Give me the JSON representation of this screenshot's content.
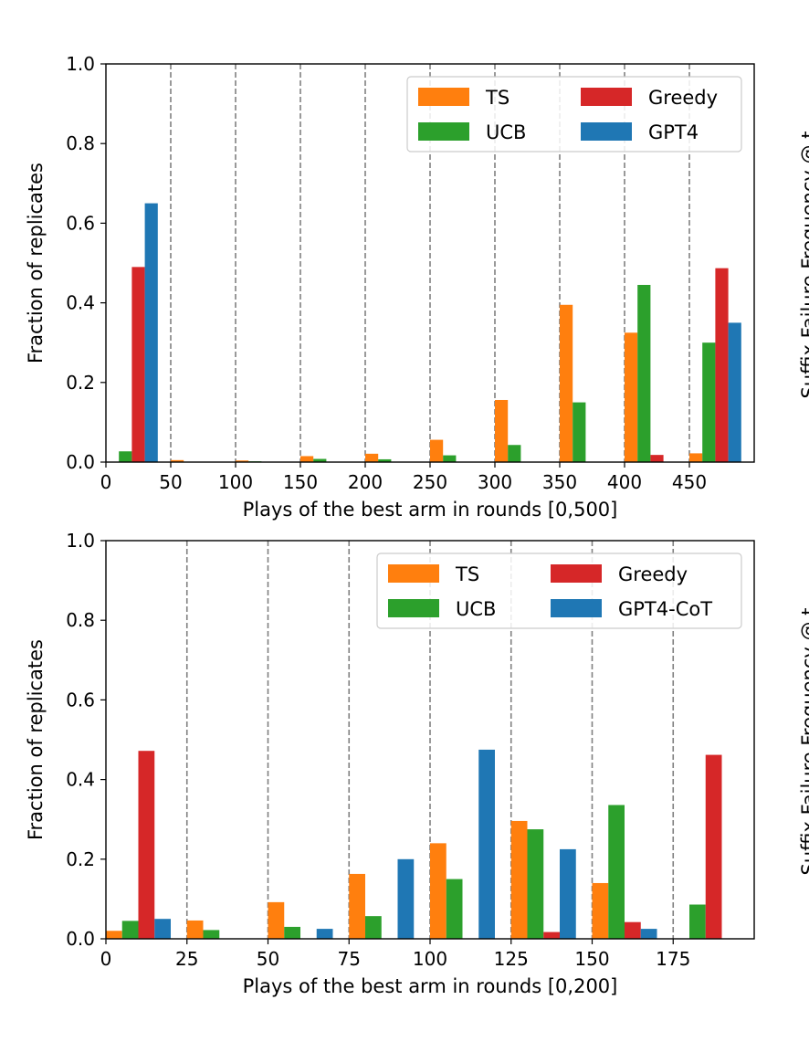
{
  "colors": {
    "TS": "#ff7f0e",
    "UCB": "#2ca02c",
    "Greedy": "#d62728",
    "GPT": "#1f77b4",
    "gridline": "#808080"
  },
  "right_edge_text": "Suffix Failure Frequency @ t",
  "chart_data": [
    {
      "type": "bar",
      "xlabel": "Plays of the best arm in rounds [0,500]",
      "ylabel": "Fraction of replicates",
      "xlim": [
        0,
        500
      ],
      "ylim": [
        0,
        1.0
      ],
      "xticks": [
        "0",
        "50",
        "100",
        "150",
        "200",
        "250",
        "300",
        "350",
        "400",
        "450"
      ],
      "yticks": [
        "0.0",
        "0.2",
        "0.4",
        "0.6",
        "0.8",
        "1.0"
      ],
      "bin_width": 50,
      "dashed_vlines_at": [
        50,
        100,
        150,
        200,
        250,
        300,
        350,
        400,
        450
      ],
      "bins": [
        0,
        50,
        100,
        150,
        200,
        250,
        300,
        350,
        400,
        450
      ],
      "legend": {
        "position": "top-right",
        "entries": [
          "TS",
          "UCB",
          "Greedy",
          "GPT4"
        ]
      },
      "series": [
        {
          "name": "TS",
          "values": [
            0.0,
            0.005,
            0.004,
            0.015,
            0.021,
            0.056,
            0.156,
            0.395,
            0.325,
            0.022
          ]
        },
        {
          "name": "UCB",
          "values": [
            0.027,
            0.0,
            0.002,
            0.008,
            0.007,
            0.017,
            0.043,
            0.15,
            0.445,
            0.3
          ]
        },
        {
          "name": "Greedy",
          "values": [
            0.49,
            0.0,
            0.0,
            0.0,
            0.0,
            0.0,
            0.0,
            0.0,
            0.018,
            0.487
          ]
        },
        {
          "name": "GPT4",
          "values": [
            0.65,
            0.0,
            0.0,
            0.0,
            0.0,
            0.0,
            0.0,
            0.0,
            0.0,
            0.35
          ]
        }
      ]
    },
    {
      "type": "bar",
      "xlabel": "Plays of the best arm in rounds [0,200]",
      "ylabel": "Fraction of replicates",
      "xlim": [
        0,
        200
      ],
      "ylim": [
        0,
        1.0
      ],
      "xticks": [
        "0",
        "25",
        "50",
        "75",
        "100",
        "125",
        "150",
        "175"
      ],
      "yticks": [
        "0.0",
        "0.2",
        "0.4",
        "0.6",
        "0.8",
        "1.0"
      ],
      "bin_width": 25,
      "dashed_vlines_at": [
        25,
        50,
        75,
        100,
        125,
        150,
        175
      ],
      "bins": [
        0,
        25,
        50,
        75,
        100,
        125,
        150,
        175
      ],
      "legend": {
        "position": "top-right",
        "entries": [
          "TS",
          "UCB",
          "Greedy",
          "GPT4-CoT"
        ]
      },
      "series": [
        {
          "name": "TS",
          "values": [
            0.02,
            0.046,
            0.092,
            0.163,
            0.24,
            0.296,
            0.14,
            0.0
          ]
        },
        {
          "name": "UCB",
          "values": [
            0.045,
            0.022,
            0.03,
            0.057,
            0.15,
            0.275,
            0.336,
            0.086
          ]
        },
        {
          "name": "Greedy",
          "values": [
            0.472,
            0.0,
            0.0,
            0.0,
            0.0,
            0.017,
            0.042,
            0.462
          ]
        },
        {
          "name": "GPT4-CoT",
          "values": [
            0.05,
            0.0,
            0.025,
            0.2,
            0.475,
            0.225,
            0.025,
            0.0
          ]
        }
      ]
    }
  ]
}
